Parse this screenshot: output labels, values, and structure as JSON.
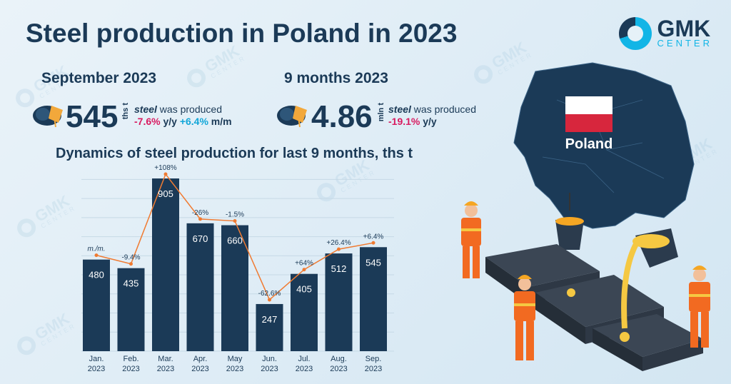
{
  "title": "Steel production in Poland in 2023",
  "logo": {
    "name": "GMK",
    "sub": "CENTER",
    "colors": {
      "dark": "#1b3a57",
      "accent": "#12b5e6"
    }
  },
  "watermark": {
    "name": "GMK",
    "sub": "CENTER"
  },
  "month_block": {
    "label": "September 2023",
    "value": "545",
    "unit": "ths t",
    "desc_italic": "steel",
    "desc_rest": " was produced",
    "yy": "-7.6%",
    "yy_suffix": " y/y",
    "mm": "+6.4%",
    "mm_suffix": " m/m"
  },
  "ytd_block": {
    "label": "9 months 2023",
    "value": "4.86",
    "unit": "mln t",
    "desc_italic": "steel",
    "desc_rest": " was produced",
    "yy": "-19.1%",
    "yy_suffix": " y/y"
  },
  "map": {
    "label": "Poland"
  },
  "icons": {
    "product": "steel-coil-icon",
    "flag": "poland-flag-icon"
  },
  "colors": {
    "bar": "#1b3a57",
    "line": "#f07b32",
    "neg": "#d81b60",
    "pos": "#12a6d8"
  },
  "chart_data": {
    "type": "bar",
    "title": "Dynamics of steel production for last 9 months, ths t",
    "categories": [
      [
        "Jan.",
        "2023"
      ],
      [
        "Feb.",
        "2023"
      ],
      [
        "Mar.",
        "2023"
      ],
      [
        "Apr.",
        "2023"
      ],
      [
        "May",
        "2023"
      ],
      [
        "Jun.",
        "2023"
      ],
      [
        "Jul.",
        "2023"
      ],
      [
        "Aug.",
        "2023"
      ],
      [
        "Sep.",
        "2023"
      ]
    ],
    "values": [
      480,
      435,
      905,
      670,
      660,
      247,
      405,
      512,
      545
    ],
    "mm_changes": [
      "m./m.",
      "-9.4%",
      "+108%",
      "-26%",
      "-1.5%",
      "-62.6%",
      "+64%",
      "+26.4%",
      "+6.4%"
    ],
    "ylim": [
      0,
      950
    ],
    "grid": true
  }
}
